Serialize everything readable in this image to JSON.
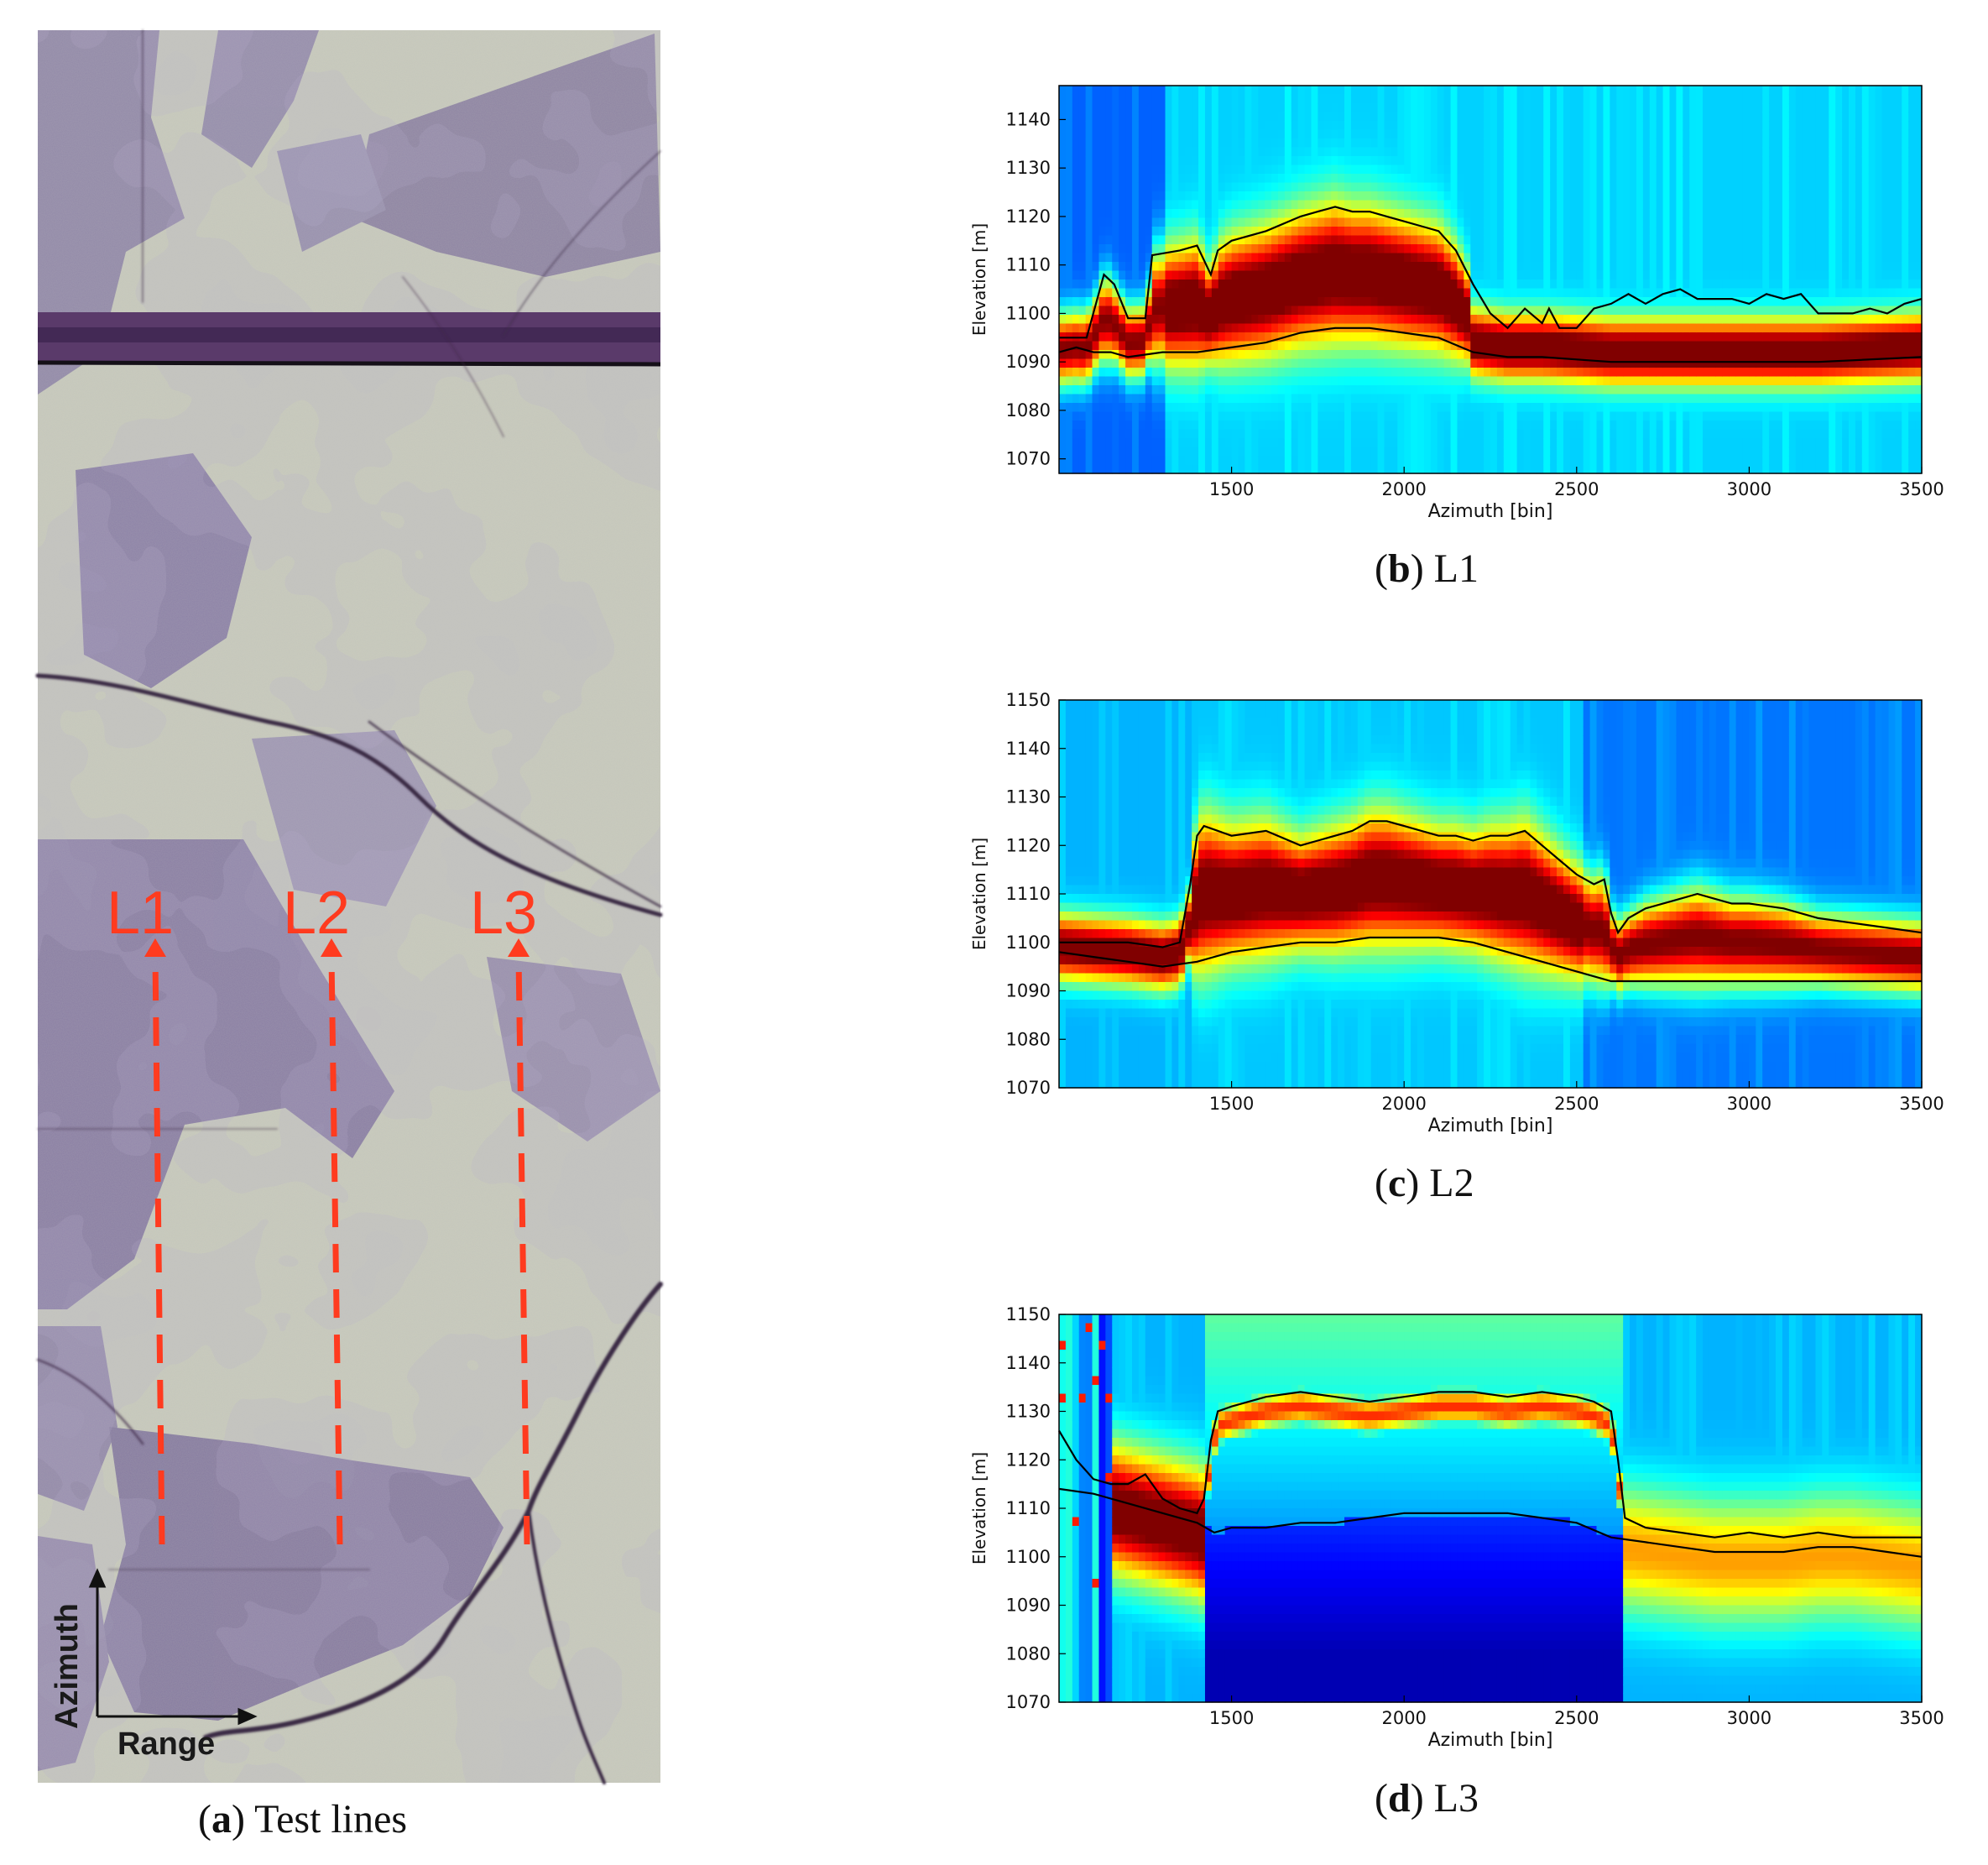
{
  "panel_a": {
    "label": "a",
    "caption": "Test lines",
    "line_labels": [
      "L1",
      "L2",
      "L3"
    ],
    "axis_up": "Azimuth",
    "axis_right": "Range",
    "colors": {
      "marker": "#ff3b1f",
      "field_light": "#c9cbbd",
      "field_purple": "#7d6f9e",
      "road": "#4a2a58"
    }
  },
  "panel_b": {
    "label": "b",
    "caption": "L1"
  },
  "panel_c": {
    "label": "c",
    "caption": "L2"
  },
  "panel_d": {
    "label": "d",
    "caption": "L3"
  },
  "chart_data": [
    {
      "type": "heatmap",
      "id": "L1",
      "xlabel": "Azimuth [bin]",
      "ylabel": "Elevation [m]",
      "xlim": [
        1000,
        3500
      ],
      "ylim": [
        1067,
        1147
      ],
      "xticks": [
        1500,
        2000,
        2500,
        3000,
        3500
      ],
      "yticks": [
        1070,
        1080,
        1090,
        1100,
        1110,
        1120,
        1130,
        1140
      ],
      "colormap": "jet",
      "upper_line": {
        "x": [
          1000,
          1080,
          1130,
          1160,
          1200,
          1250,
          1270,
          1350,
          1400,
          1440,
          1460,
          1500,
          1600,
          1700,
          1750,
          1800,
          1850,
          1900,
          1950,
          2000,
          2050,
          2100,
          2150,
          2200,
          2250,
          2300,
          2350,
          2400,
          2420,
          2450,
          2500,
          2550,
          2600,
          2650,
          2700,
          2750,
          2800,
          2850,
          2900,
          2950,
          3000,
          3050,
          3100,
          3150,
          3200,
          3250,
          3300,
          3350,
          3400,
          3450,
          3500
        ],
        "y": [
          1095,
          1095,
          1108,
          1106,
          1099,
          1099,
          1112,
          1113,
          1114,
          1108,
          1113,
          1115,
          1117,
          1120,
          1121,
          1122,
          1121,
          1121,
          1120,
          1119,
          1118,
          1117,
          1113,
          1106,
          1100,
          1097,
          1101,
          1098,
          1101,
          1097,
          1097,
          1101,
          1102,
          1104,
          1102,
          1104,
          1105,
          1103,
          1103,
          1103,
          1102,
          1104,
          1103,
          1104,
          1100,
          1100,
          1100,
          1101,
          1100,
          1102,
          1103
        ]
      },
      "lower_line": {
        "x": [
          1000,
          1050,
          1100,
          1150,
          1200,
          1300,
          1400,
          1500,
          1600,
          1700,
          1800,
          1900,
          2000,
          2100,
          2200,
          2300,
          2400,
          2600,
          2800,
          3000,
          3200,
          3500
        ],
        "y": [
          1092,
          1093,
          1092,
          1092,
          1091,
          1092,
          1092,
          1093,
          1094,
          1096,
          1097,
          1097,
          1096,
          1095,
          1092,
          1091,
          1091,
          1090,
          1090,
          1090,
          1090,
          1091
        ]
      }
    },
    {
      "type": "heatmap",
      "id": "L2",
      "xlabel": "Azimuth [bin]",
      "ylabel": "Elevation [m]",
      "xlim": [
        1000,
        3500
      ],
      "ylim": [
        1070,
        1150
      ],
      "xticks": [
        1500,
        2000,
        2500,
        3000,
        3500
      ],
      "yticks": [
        1070,
        1080,
        1090,
        1100,
        1110,
        1120,
        1130,
        1140,
        1150
      ],
      "colormap": "jet",
      "upper_line": {
        "x": [
          1000,
          1100,
          1200,
          1300,
          1350,
          1380,
          1400,
          1420,
          1500,
          1600,
          1700,
          1750,
          1800,
          1850,
          1900,
          1950,
          2000,
          2050,
          2100,
          2150,
          2200,
          2250,
          2300,
          2350,
          2400,
          2450,
          2500,
          2550,
          2580,
          2600,
          2620,
          2650,
          2700,
          2800,
          2850,
          2900,
          2950,
          3000,
          3100,
          3200,
          3300,
          3400,
          3500
        ],
        "y": [
          1100,
          1100,
          1100,
          1099,
          1100,
          1112,
          1122,
          1124,
          1122,
          1123,
          1120,
          1121,
          1122,
          1123,
          1125,
          1125,
          1124,
          1123,
          1122,
          1122,
          1121,
          1122,
          1122,
          1123,
          1120,
          1117,
          1114,
          1112,
          1113,
          1106,
          1102,
          1105,
          1107,
          1109,
          1110,
          1109,
          1108,
          1108,
          1107,
          1105,
          1104,
          1103,
          1102
        ]
      },
      "lower_line": {
        "x": [
          1000,
          1100,
          1200,
          1300,
          1400,
          1500,
          1600,
          1700,
          1800,
          1900,
          2000,
          2100,
          2200,
          2300,
          2400,
          2500,
          2600,
          2800,
          3000,
          3200,
          3500
        ],
        "y": [
          1098,
          1097,
          1096,
          1095,
          1096,
          1098,
          1099,
          1100,
          1100,
          1101,
          1101,
          1101,
          1100,
          1098,
          1096,
          1094,
          1092,
          1092,
          1092,
          1092,
          1092
        ]
      }
    },
    {
      "type": "heatmap",
      "id": "L3",
      "xlabel": "Azimuth [bin]",
      "ylabel": "Elevation [m]",
      "xlim": [
        1000,
        3500
      ],
      "ylim": [
        1070,
        1150
      ],
      "xticks": [
        1500,
        2000,
        2500,
        3000,
        3500
      ],
      "yticks": [
        1070,
        1080,
        1090,
        1100,
        1110,
        1120,
        1130,
        1140,
        1150
      ],
      "colormap": "jet",
      "upper_line": {
        "x": [
          1000,
          1050,
          1100,
          1150,
          1200,
          1250,
          1300,
          1350,
          1400,
          1420,
          1440,
          1460,
          1500,
          1600,
          1700,
          1800,
          1900,
          2000,
          2100,
          2200,
          2300,
          2400,
          2500,
          2550,
          2600,
          2620,
          2640,
          2700,
          2800,
          2900,
          3000,
          3100,
          3200,
          3300,
          3400,
          3500
        ],
        "y": [
          1126,
          1120,
          1116,
          1115,
          1115,
          1117,
          1112,
          1110,
          1109,
          1112,
          1124,
          1130,
          1131,
          1133,
          1134,
          1133,
          1132,
          1133,
          1134,
          1134,
          1133,
          1134,
          1133,
          1132,
          1130,
          1120,
          1108,
          1106,
          1105,
          1104,
          1105,
          1104,
          1105,
          1104,
          1104,
          1104
        ]
      },
      "lower_line": {
        "x": [
          1000,
          1100,
          1200,
          1300,
          1400,
          1450,
          1500,
          1600,
          1700,
          1800,
          1900,
          2000,
          2100,
          2200,
          2300,
          2400,
          2500,
          2600,
          2700,
          2800,
          2900,
          3000,
          3100,
          3200,
          3300,
          3400,
          3500
        ],
        "y": [
          1114,
          1113,
          1111,
          1109,
          1107,
          1105,
          1106,
          1106,
          1107,
          1107,
          1108,
          1109,
          1109,
          1109,
          1109,
          1108,
          1107,
          1104,
          1103,
          1102,
          1101,
          1101,
          1101,
          1102,
          1102,
          1101,
          1100
        ]
      }
    }
  ]
}
